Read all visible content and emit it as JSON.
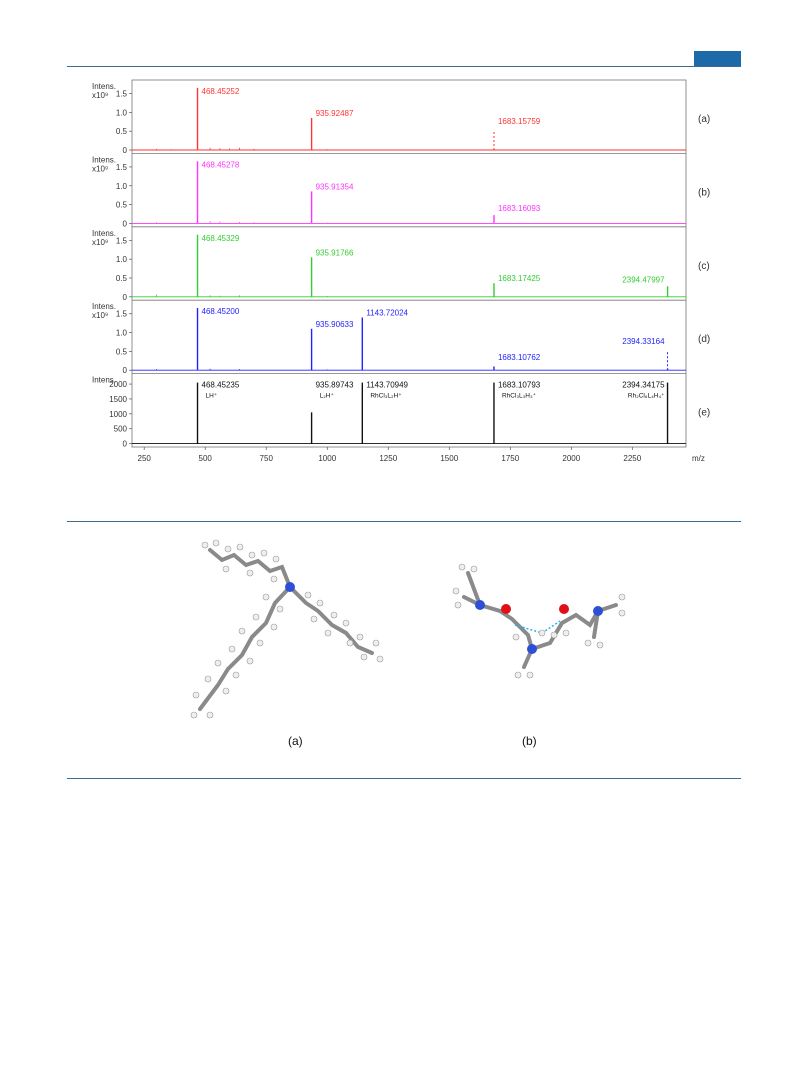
{
  "chart_data": {
    "type": "line",
    "x_axis": {
      "label": "m/z",
      "ticks": [
        250,
        500,
        750,
        1000,
        1250,
        1500,
        1750,
        2000,
        2250
      ],
      "range": [
        200,
        2470
      ]
    },
    "panels": [
      {
        "id": "a",
        "tag": "(a)",
        "ylabel": "Intens.",
        "yunit": "x10⁹",
        "ylim": [
          0,
          1.7
        ],
        "yticks": [
          "0",
          "0.5",
          "1.0",
          "1.5"
        ],
        "yvalues": [
          0,
          0.5,
          1.0,
          1.5
        ],
        "color": "#ff3333",
        "peaks": [
          {
            "mz": 468.45252,
            "intensity": 1.65,
            "label": "468.45252"
          },
          {
            "mz": 935.92487,
            "intensity": 0.85,
            "label": "935.92487"
          },
          {
            "mz": 1683.15759,
            "intensity": 0.02,
            "label": "1683.15759",
            "dashed": true
          }
        ],
        "minor": [
          [
            300,
            0.03
          ],
          [
            360,
            0.02
          ],
          [
            520,
            0.06
          ],
          [
            560,
            0.05
          ],
          [
            600,
            0.04
          ],
          [
            640,
            0.06
          ],
          [
            700,
            0.03
          ],
          [
            1000,
            0.02
          ]
        ]
      },
      {
        "id": "b",
        "tag": "(b)",
        "ylabel": "Intens.",
        "yunit": "x10⁹",
        "ylim": [
          0,
          1.7
        ],
        "yticks": [
          "0",
          "0.5",
          "1.0",
          "1.5"
        ],
        "yvalues": [
          0,
          0.5,
          1.0,
          1.5
        ],
        "color": "#ff33ff",
        "peaks": [
          {
            "mz": 468.45278,
            "intensity": 1.65,
            "label": "468.45278"
          },
          {
            "mz": 935.91354,
            "intensity": 0.85,
            "label": "935.91354"
          },
          {
            "mz": 1683.16093,
            "intensity": 0.22,
            "label": "1683.16093"
          }
        ],
        "minor": [
          [
            300,
            0.03
          ],
          [
            520,
            0.06
          ],
          [
            560,
            0.05
          ],
          [
            640,
            0.04
          ],
          [
            700,
            0.03
          ],
          [
            1000,
            0.02
          ]
        ]
      },
      {
        "id": "c",
        "tag": "(c)",
        "ylabel": "Intens.",
        "yunit": "x10⁹",
        "ylim": [
          0,
          1.7
        ],
        "yticks": [
          "0",
          "0.5",
          "1.0",
          "1.5"
        ],
        "yvalues": [
          0,
          0.5,
          1.0,
          1.5
        ],
        "color": "#33cc33",
        "peaks": [
          {
            "mz": 468.45329,
            "intensity": 1.65,
            "label": "468.45329"
          },
          {
            "mz": 935.91766,
            "intensity": 1.05,
            "label": "935.91766"
          },
          {
            "mz": 1683.17425,
            "intensity": 0.36,
            "label": "1683.17425"
          },
          {
            "mz": 2394.47997,
            "intensity": 0.28,
            "label": "2394.47997"
          }
        ],
        "minor": [
          [
            300,
            0.06
          ],
          [
            520,
            0.04
          ],
          [
            560,
            0.03
          ],
          [
            640,
            0.04
          ],
          [
            1000,
            0.02
          ]
        ]
      },
      {
        "id": "d",
        "tag": "(d)",
        "ylabel": "Intens.",
        "yunit": "x10⁹",
        "ylim": [
          0,
          1.7
        ],
        "yticks": [
          "0",
          "0.5",
          "1.0",
          "1.5"
        ],
        "yvalues": [
          0,
          0.5,
          1.0,
          1.5
        ],
        "color": "#2222ff",
        "peaks": [
          {
            "mz": 468.452,
            "intensity": 1.65,
            "label": "468.45200"
          },
          {
            "mz": 935.90633,
            "intensity": 1.1,
            "label": "935.90633"
          },
          {
            "mz": 1143.72024,
            "intensity": 1.4,
            "label": "1143.72024"
          },
          {
            "mz": 1683.10762,
            "intensity": 0.1,
            "label": "1683.10762"
          },
          {
            "mz": 2394.33164,
            "intensity": 0.04,
            "label": "2394.33164",
            "dashed": true
          }
        ],
        "minor": [
          [
            300,
            0.03
          ],
          [
            520,
            0.04
          ],
          [
            640,
            0.03
          ],
          [
            1000,
            0.02
          ]
        ]
      },
      {
        "id": "e",
        "tag": "(e)",
        "ylabel": "Intens.",
        "yunit": "",
        "ylim": [
          0,
          2150
        ],
        "yticks": [
          "0",
          "500",
          "1000",
          "1500",
          "2000"
        ],
        "yvalues": [
          0,
          500,
          1000,
          1500,
          2000
        ],
        "color": "#111111",
        "peaks": [
          {
            "mz": 468.45235,
            "intensity": 2050,
            "label": "468.45235",
            "sublabel": "LH⁺"
          },
          {
            "mz": 935.89743,
            "intensity": 1050,
            "label": "935.89743",
            "sublabel": "L₂H⁺"
          },
          {
            "mz": 1143.70949,
            "intensity": 2050,
            "label": "1143.70949",
            "sublabel": "RhCl₃L₂H⁺"
          },
          {
            "mz": 1683.10793,
            "intensity": 2050,
            "label": "1683.10793",
            "sublabel": "RhCl₃L₃H₃⁺"
          },
          {
            "mz": 2394.34175,
            "intensity": 2050,
            "label": "2394.34175",
            "sublabel": "Rh₂Cl₆L₄H₄⁺"
          }
        ],
        "minor": []
      }
    ]
  },
  "captions": {
    "a": "(a)",
    "b": "(b)"
  }
}
